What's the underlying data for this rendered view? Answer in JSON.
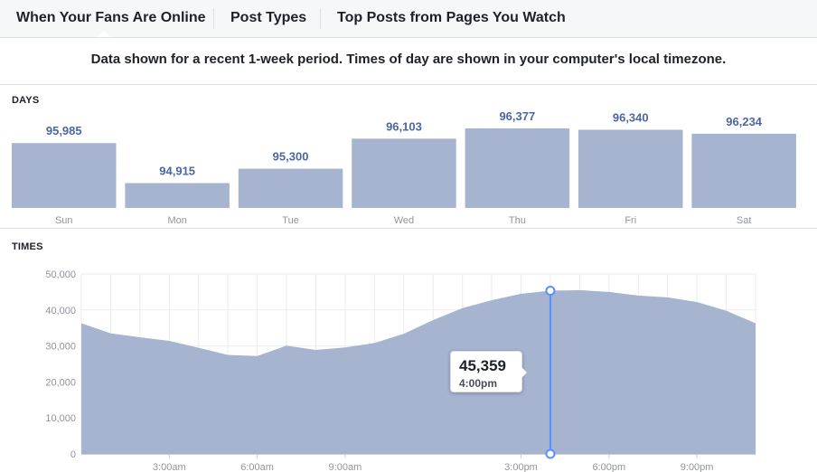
{
  "tabs": [
    {
      "label": "When Your Fans Are Online",
      "active": true
    },
    {
      "label": "Post Types",
      "active": false
    },
    {
      "label": "Top Posts from Pages You Watch",
      "active": false
    }
  ],
  "notice": "Data shown for a recent 1-week period. Times of day are shown in your computer's local timezone.",
  "days_label": "DAYS",
  "times_label": "TIMES",
  "colors": {
    "bar": "#a6b4d0",
    "value_text": "#4b67a1",
    "area": "#a6b4d0",
    "cursor": "#5890ff",
    "grid": "#e9ebee",
    "tick_text": "#90949c"
  },
  "tooltip": {
    "value": "45,359",
    "time": "4:00pm"
  },
  "chart_data": [
    {
      "type": "bar",
      "title": "DAYS",
      "categories": [
        "Sun",
        "Mon",
        "Tue",
        "Wed",
        "Thu",
        "Fri",
        "Sat"
      ],
      "values": [
        95985,
        94915,
        95300,
        96103,
        96377,
        96340,
        96234
      ],
      "value_labels": [
        "95,985",
        "94,915",
        "95,300",
        "96,103",
        "96,377",
        "96,340",
        "96,234"
      ]
    },
    {
      "type": "area",
      "title": "TIMES",
      "x": [
        0,
        1,
        2,
        3,
        4,
        5,
        6,
        7,
        8,
        9,
        10,
        11,
        12,
        13,
        14,
        15,
        16,
        17,
        18,
        19,
        20,
        21,
        22,
        23
      ],
      "y": [
        36300,
        33500,
        32400,
        31400,
        29500,
        27500,
        27200,
        30100,
        28900,
        29600,
        30800,
        33400,
        37200,
        40500,
        42700,
        44500,
        45359,
        45500,
        45000,
        44000,
        43500,
        42200,
        39800,
        36300
      ],
      "x_ticks": [
        {
          "x": 3,
          "label": "3:00am"
        },
        {
          "x": 6,
          "label": "6:00am"
        },
        {
          "x": 9,
          "label": "9:00am"
        },
        {
          "x": 15,
          "label": "3:00pm"
        },
        {
          "x": 18,
          "label": "6:00pm"
        },
        {
          "x": 21,
          "label": "9:00pm"
        }
      ],
      "y_ticks": [
        {
          "value": 0,
          "label": "0"
        },
        {
          "value": 10000,
          "label": "10,000"
        },
        {
          "value": 20000,
          "label": "20,000"
        },
        {
          "value": 30000,
          "label": "30,000"
        },
        {
          "value": 40000,
          "label": "40,000"
        },
        {
          "value": 50000,
          "label": "50,000"
        }
      ],
      "ylim": [
        0,
        50000
      ],
      "xlim": [
        0,
        23
      ],
      "highlight": {
        "x": 16,
        "y": 45359
      },
      "grid": true
    }
  ]
}
